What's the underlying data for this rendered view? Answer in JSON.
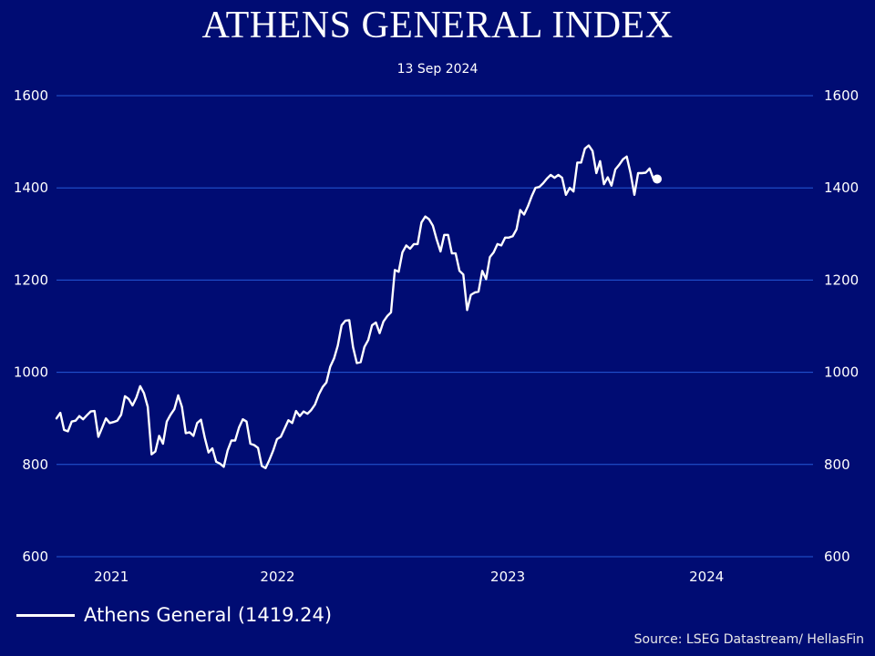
{
  "chart_data": {
    "type": "line",
    "title": "ATHENS GENERAL INDEX",
    "subtitle": "13 Sep 2024",
    "ylim": [
      600,
      1600
    ],
    "yticks": [
      600,
      800,
      1000,
      1200,
      1400,
      1600
    ],
    "yaxis_sides": "left and right",
    "grid": true,
    "x_labels": [
      "2021",
      "2022",
      "2023",
      "2024"
    ],
    "x_label_dates": [
      "2021-03-01",
      "2022-01-01",
      "2023-03-01",
      "2024-03-01"
    ],
    "xlim": [
      "2020-11-20",
      "2024-09-13"
    ],
    "legend_placement": "bottom-left",
    "source": "Source: LSEG Datastream/ HellasFin",
    "end_marker": true,
    "series": [
      {
        "name": "Athens General (1419.24)",
        "color": "#ffffff",
        "points": [
          [
            "2020-11-20",
            900
          ],
          [
            "2020-11-27",
            912
          ],
          [
            "2020-12-04",
            875
          ],
          [
            "2020-12-11",
            872
          ],
          [
            "2020-12-18",
            893
          ],
          [
            "2020-12-25",
            895
          ],
          [
            "2021-01-01",
            905
          ],
          [
            "2021-01-08",
            898
          ],
          [
            "2021-01-15",
            907
          ],
          [
            "2021-01-22",
            915
          ],
          [
            "2021-01-29",
            916
          ],
          [
            "2021-02-05",
            860
          ],
          [
            "2021-02-12",
            880
          ],
          [
            "2021-02-19",
            900
          ],
          [
            "2021-02-26",
            890
          ],
          [
            "2021-03-05",
            892
          ],
          [
            "2021-03-12",
            895
          ],
          [
            "2021-03-19",
            908
          ],
          [
            "2021-03-26",
            948
          ],
          [
            "2021-04-02",
            942
          ],
          [
            "2021-04-09",
            928
          ],
          [
            "2021-04-16",
            945
          ],
          [
            "2021-04-23",
            970
          ],
          [
            "2021-04-30",
            955
          ],
          [
            "2021-05-07",
            925
          ],
          [
            "2021-05-14",
            822
          ],
          [
            "2021-05-21",
            828
          ],
          [
            "2021-05-28",
            862
          ],
          [
            "2021-06-04",
            845
          ],
          [
            "2021-06-11",
            893
          ],
          [
            "2021-06-18",
            908
          ],
          [
            "2021-06-25",
            920
          ],
          [
            "2021-07-02",
            950
          ],
          [
            "2021-07-09",
            925
          ],
          [
            "2021-07-16",
            868
          ],
          [
            "2021-07-23",
            870
          ],
          [
            "2021-07-30",
            862
          ],
          [
            "2021-08-06",
            890
          ],
          [
            "2021-08-13",
            897
          ],
          [
            "2021-08-20",
            858
          ],
          [
            "2021-08-27",
            826
          ],
          [
            "2021-09-03",
            835
          ],
          [
            "2021-09-10",
            806
          ],
          [
            "2021-09-17",
            802
          ],
          [
            "2021-09-24",
            795
          ],
          [
            "2021-10-01",
            830
          ],
          [
            "2021-10-08",
            852
          ],
          [
            "2021-10-15",
            852
          ],
          [
            "2021-10-22",
            880
          ],
          [
            "2021-10-29",
            898
          ],
          [
            "2021-11-05",
            893
          ],
          [
            "2021-11-12",
            845
          ],
          [
            "2021-11-19",
            842
          ],
          [
            "2021-11-26",
            836
          ],
          [
            "2021-12-03",
            797
          ],
          [
            "2021-12-10",
            792
          ],
          [
            "2021-12-17",
            810
          ],
          [
            "2021-12-24",
            830
          ],
          [
            "2021-12-31",
            855
          ],
          [
            "2022-01-07",
            860
          ],
          [
            "2022-01-14",
            878
          ],
          [
            "2022-01-21",
            896
          ],
          [
            "2022-01-28",
            890
          ],
          [
            "2022-02-04",
            916
          ],
          [
            "2022-02-11",
            905
          ],
          [
            "2022-02-18",
            915
          ],
          [
            "2022-02-25",
            910
          ],
          [
            "2022-03-04",
            918
          ],
          [
            "2022-03-11",
            930
          ],
          [
            "2022-03-18",
            952
          ],
          [
            "2022-03-25",
            968
          ],
          [
            "2022-04-01",
            978
          ],
          [
            "2022-04-08",
            1012
          ],
          [
            "2022-04-15",
            1030
          ],
          [
            "2022-04-22",
            1058
          ],
          [
            "2022-04-29",
            1102
          ],
          [
            "2022-05-06",
            1112
          ],
          [
            "2022-05-13",
            1113
          ],
          [
            "2022-05-20",
            1055
          ],
          [
            "2022-05-27",
            1020
          ],
          [
            "2022-06-03",
            1022
          ],
          [
            "2022-06-10",
            1055
          ],
          [
            "2022-06-17",
            1070
          ],
          [
            "2022-06-24",
            1102
          ],
          [
            "2022-07-01",
            1108
          ],
          [
            "2022-07-08",
            1085
          ],
          [
            "2022-07-15",
            1110
          ],
          [
            "2022-07-22",
            1122
          ],
          [
            "2022-07-29",
            1130
          ],
          [
            "2022-08-05",
            1222
          ],
          [
            "2022-08-12",
            1218
          ],
          [
            "2022-08-19",
            1260
          ],
          [
            "2022-08-26",
            1275
          ],
          [
            "2022-09-02",
            1268
          ],
          [
            "2022-09-09",
            1278
          ],
          [
            "2022-09-16",
            1278
          ],
          [
            "2022-09-23",
            1325
          ],
          [
            "2022-09-30",
            1338
          ],
          [
            "2022-10-07",
            1332
          ],
          [
            "2022-10-14",
            1318
          ],
          [
            "2022-10-21",
            1288
          ],
          [
            "2022-10-28",
            1262
          ],
          [
            "2022-11-04",
            1298
          ],
          [
            "2022-11-11",
            1298
          ],
          [
            "2022-11-18",
            1258
          ],
          [
            "2022-11-25",
            1258
          ],
          [
            "2022-12-02",
            1220
          ],
          [
            "2022-12-09",
            1212
          ],
          [
            "2022-12-16",
            1135
          ],
          [
            "2022-12-23",
            1168
          ],
          [
            "2022-12-30",
            1173
          ],
          [
            "2023-01-06",
            1175
          ],
          [
            "2023-01-13",
            1220
          ],
          [
            "2023-01-20",
            1202
          ],
          [
            "2023-01-27",
            1250
          ],
          [
            "2023-02-03",
            1260
          ],
          [
            "2023-02-10",
            1278
          ],
          [
            "2023-02-17",
            1275
          ],
          [
            "2023-02-24",
            1292
          ],
          [
            "2023-03-03",
            1292
          ],
          [
            "2023-03-10",
            1295
          ],
          [
            "2023-03-17",
            1310
          ],
          [
            "2023-03-24",
            1352
          ],
          [
            "2023-03-31",
            1342
          ],
          [
            "2023-04-07",
            1360
          ],
          [
            "2023-04-14",
            1382
          ],
          [
            "2023-04-21",
            1400
          ],
          [
            "2023-04-28",
            1402
          ],
          [
            "2023-05-05",
            1410
          ],
          [
            "2023-05-12",
            1420
          ],
          [
            "2023-05-19",
            1428
          ],
          [
            "2023-05-26",
            1422
          ],
          [
            "2023-06-02",
            1428
          ],
          [
            "2023-06-09",
            1422
          ],
          [
            "2023-06-16",
            1385
          ],
          [
            "2023-06-23",
            1400
          ],
          [
            "2023-06-30",
            1392
          ],
          [
            "2023-07-07",
            1455
          ],
          [
            "2023-07-14",
            1455
          ],
          [
            "2023-07-21",
            1485
          ],
          [
            "2023-07-28",
            1492
          ],
          [
            "2023-08-04",
            1480
          ],
          [
            "2023-08-11",
            1432
          ],
          [
            "2023-08-18",
            1458
          ],
          [
            "2023-08-25",
            1408
          ],
          [
            "2023-09-01",
            1423
          ],
          [
            "2023-09-08",
            1405
          ],
          [
            "2023-09-15",
            1440
          ],
          [
            "2023-09-22",
            1450
          ],
          [
            "2023-09-29",
            1462
          ],
          [
            "2023-10-06",
            1468
          ],
          [
            "2023-10-13",
            1432
          ],
          [
            "2023-10-20",
            1385
          ],
          [
            "2023-10-27",
            1432
          ],
          [
            "2023-11-03",
            1432
          ],
          [
            "2023-11-10",
            1433
          ],
          [
            "2023-11-17",
            1442
          ],
          [
            "2023-11-24",
            1420
          ],
          [
            "2023-12-01",
            1419.24
          ]
        ]
      }
    ]
  }
}
